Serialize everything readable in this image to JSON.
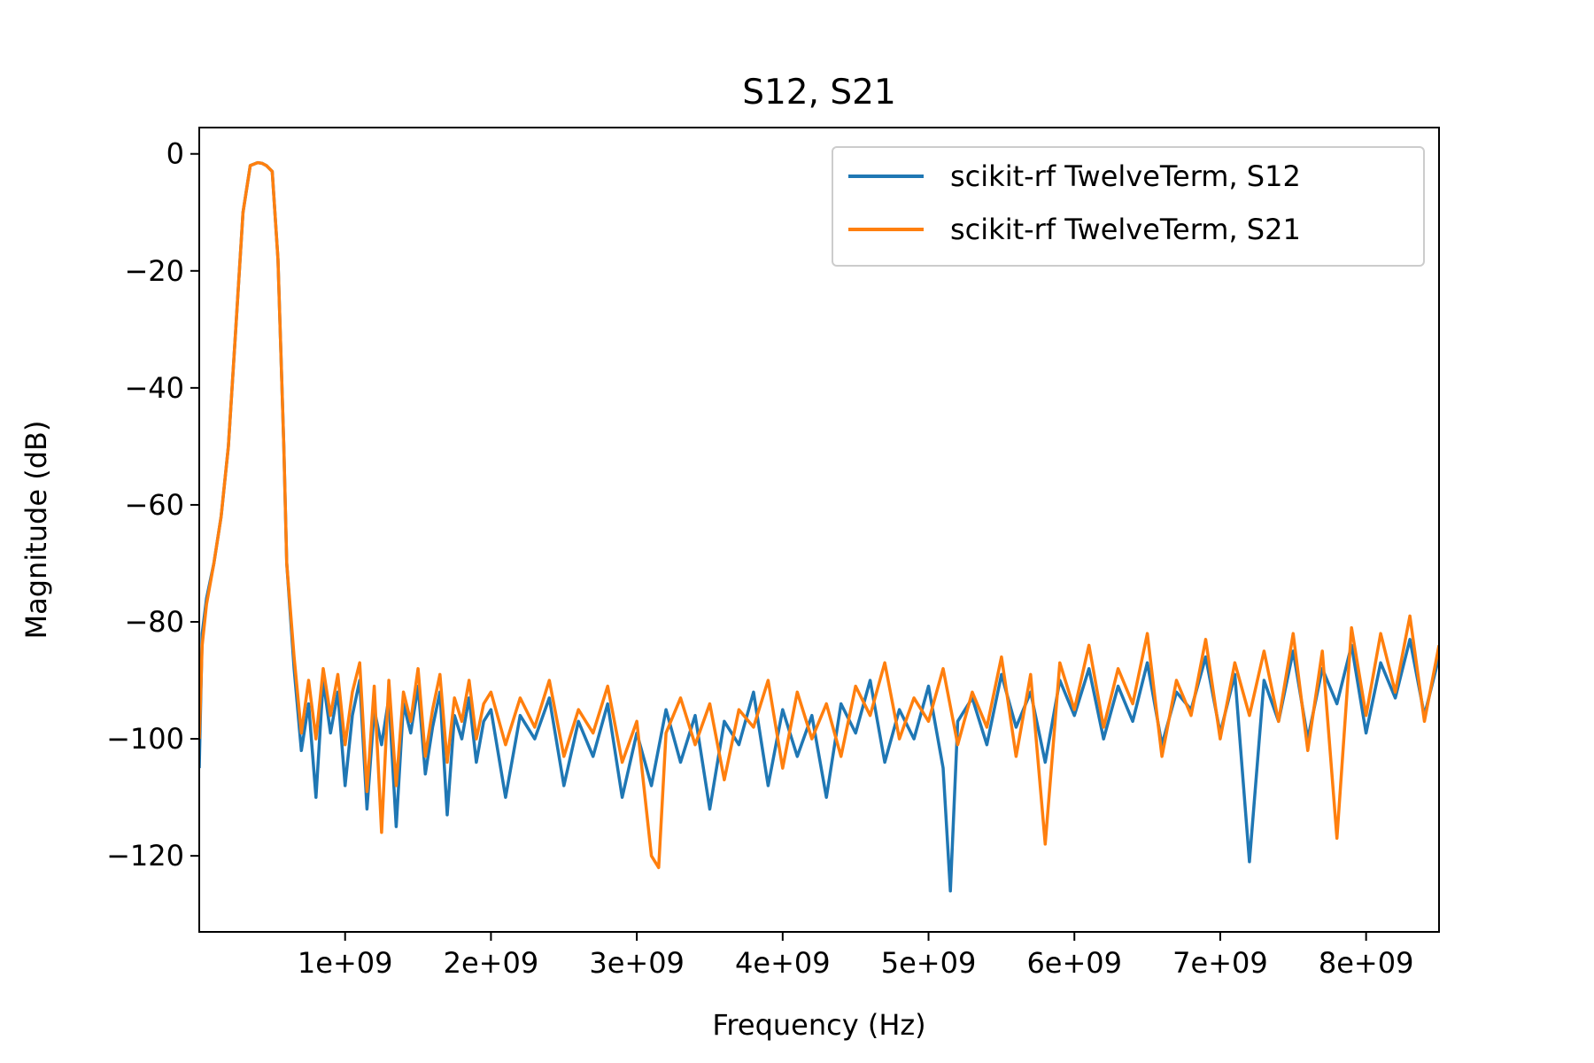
{
  "chart_data": {
    "type": "line",
    "title": "S12, S21",
    "xlabel": "Frequency (Hz)",
    "ylabel": "Magnitude (dB)",
    "xlim": [
      0,
      8500000000
    ],
    "ylim": [
      -133,
      4.5
    ],
    "xticks": [
      {
        "value": 1000000000,
        "label": "1e+09"
      },
      {
        "value": 2000000000,
        "label": "2e+09"
      },
      {
        "value": 3000000000,
        "label": "3e+09"
      },
      {
        "value": 4000000000,
        "label": "4e+09"
      },
      {
        "value": 5000000000,
        "label": "5e+09"
      },
      {
        "value": 6000000000,
        "label": "6e+09"
      },
      {
        "value": 7000000000,
        "label": "7e+09"
      },
      {
        "value": 8000000000,
        "label": "8e+09"
      }
    ],
    "yticks": [
      {
        "value": 0,
        "label": "0"
      },
      {
        "value": -20,
        "label": "−20"
      },
      {
        "value": -40,
        "label": "−40"
      },
      {
        "value": -60,
        "label": "−60"
      },
      {
        "value": -80,
        "label": "−80"
      },
      {
        "value": -100,
        "label": "−100"
      },
      {
        "value": -120,
        "label": "−120"
      }
    ],
    "grid": false,
    "legend_position": "upper right",
    "series": [
      {
        "name": "scikit-rf TwelveTerm, S12",
        "color": "#1f77b4",
        "x": [
          0,
          20000000,
          50000000,
          100000000,
          150000000,
          200000000,
          250000000,
          300000000,
          350000000,
          400000000,
          430000000,
          460000000,
          500000000,
          540000000,
          580000000,
          600000000,
          650000000,
          700000000,
          750000000,
          800000000,
          850000000,
          900000000,
          950000000,
          1000000000,
          1050000000,
          1100000000,
          1150000000,
          1200000000,
          1250000000,
          1300000000,
          1350000000,
          1400000000,
          1450000000,
          1500000000,
          1550000000,
          1600000000,
          1650000000,
          1700000000,
          1750000000,
          1800000000,
          1850000000,
          1900000000,
          1950000000,
          2000000000,
          2100000000,
          2200000000,
          2300000000,
          2400000000,
          2500000000,
          2600000000,
          2700000000,
          2800000000,
          2900000000,
          3000000000,
          3100000000,
          3200000000,
          3300000000,
          3400000000,
          3500000000,
          3600000000,
          3700000000,
          3800000000,
          3900000000,
          4000000000,
          4100000000,
          4200000000,
          4300000000,
          4400000000,
          4500000000,
          4600000000,
          4700000000,
          4800000000,
          4900000000,
          5000000000,
          5100000000,
          5150000000,
          5200000000,
          5300000000,
          5400000000,
          5500000000,
          5600000000,
          5700000000,
          5800000000,
          5900000000,
          6000000000,
          6100000000,
          6200000000,
          6300000000,
          6400000000,
          6500000000,
          6600000000,
          6700000000,
          6800000000,
          6900000000,
          7000000000,
          7100000000,
          7200000000,
          7300000000,
          7400000000,
          7500000000,
          7600000000,
          7700000000,
          7800000000,
          7900000000,
          8000000000,
          8100000000,
          8200000000,
          8300000000,
          8400000000,
          8500000000
        ],
        "y": [
          -105,
          -82,
          -76,
          -70,
          -62,
          -50,
          -30,
          -10,
          -2,
          -1.5,
          -1.6,
          -2,
          -3,
          -18,
          -50,
          -70,
          -88,
          -102,
          -94,
          -110,
          -90,
          -99,
          -92,
          -108,
          -96,
          -90,
          -112,
          -95,
          -101,
          -93,
          -115,
          -94,
          -99,
          -91,
          -106,
          -98,
          -92,
          -113,
          -96,
          -100,
          -93,
          -104,
          -97,
          -95,
          -110,
          -96,
          -100,
          -93,
          -108,
          -97,
          -103,
          -94,
          -110,
          -99,
          -108,
          -95,
          -104,
          -96,
          -112,
          -97,
          -101,
          -92,
          -108,
          -95,
          -103,
          -96,
          -110,
          -94,
          -99,
          -90,
          -104,
          -95,
          -100,
          -91,
          -105,
          -126,
          -97,
          -93,
          -101,
          -89,
          -98,
          -92,
          -104,
          -90,
          -96,
          -88,
          -100,
          -91,
          -97,
          -87,
          -101,
          -92,
          -95,
          -86,
          -99,
          -89,
          -121,
          -90,
          -97,
          -85,
          -100,
          -88,
          -94,
          -84,
          -99,
          -87,
          -93,
          -83,
          -96,
          -86
        ]
      },
      {
        "name": "scikit-rf TwelveTerm, S21",
        "color": "#ff7f0e",
        "x": [
          0,
          20000000,
          50000000,
          100000000,
          150000000,
          200000000,
          250000000,
          300000000,
          350000000,
          400000000,
          430000000,
          460000000,
          500000000,
          540000000,
          580000000,
          600000000,
          650000000,
          700000000,
          750000000,
          800000000,
          850000000,
          900000000,
          950000000,
          1000000000,
          1050000000,
          1100000000,
          1150000000,
          1200000000,
          1250000000,
          1300000000,
          1350000000,
          1400000000,
          1450000000,
          1500000000,
          1550000000,
          1600000000,
          1650000000,
          1700000000,
          1750000000,
          1800000000,
          1850000000,
          1900000000,
          1950000000,
          2000000000,
          2100000000,
          2200000000,
          2300000000,
          2400000000,
          2500000000,
          2600000000,
          2700000000,
          2800000000,
          2900000000,
          3000000000,
          3100000000,
          3150000000,
          3200000000,
          3300000000,
          3400000000,
          3500000000,
          3600000000,
          3700000000,
          3800000000,
          3900000000,
          4000000000,
          4100000000,
          4200000000,
          4300000000,
          4400000000,
          4500000000,
          4600000000,
          4700000000,
          4800000000,
          4900000000,
          5000000000,
          5100000000,
          5200000000,
          5300000000,
          5400000000,
          5500000000,
          5600000000,
          5700000000,
          5800000000,
          5900000000,
          6000000000,
          6100000000,
          6200000000,
          6300000000,
          6400000000,
          6500000000,
          6600000000,
          6700000000,
          6800000000,
          6900000000,
          7000000000,
          7100000000,
          7200000000,
          7300000000,
          7400000000,
          7500000000,
          7600000000,
          7700000000,
          7800000000,
          7900000000,
          8000000000,
          8100000000,
          8200000000,
          8300000000,
          8400000000,
          8500000000
        ],
        "y": [
          -100,
          -84,
          -77,
          -70,
          -62,
          -50,
          -30,
          -10,
          -2,
          -1.5,
          -1.6,
          -2,
          -3,
          -18,
          -50,
          -70,
          -86,
          -99,
          -90,
          -100,
          -88,
          -96,
          -89,
          -101,
          -92,
          -87,
          -109,
          -91,
          -116,
          -90,
          -108,
          -92,
          -97,
          -88,
          -103,
          -95,
          -89,
          -104,
          -93,
          -97,
          -90,
          -100,
          -94,
          -92,
          -101,
          -93,
          -98,
          -90,
          -103,
          -95,
          -99,
          -91,
          -104,
          -97,
          -120,
          -122,
          -99,
          -93,
          -101,
          -94,
          -107,
          -95,
          -98,
          -90,
          -105,
          -92,
          -100,
          -94,
          -103,
          -91,
          -96,
          -87,
          -100,
          -93,
          -97,
          -88,
          -101,
          -92,
          -98,
          -86,
          -103,
          -89,
          -118,
          -87,
          -95,
          -84,
          -98,
          -88,
          -94,
          -82,
          -103,
          -90,
          -96,
          -83,
          -100,
          -87,
          -96,
          -85,
          -97,
          -82,
          -102,
          -85,
          -117,
          -81,
          -96,
          -82,
          -92,
          -79,
          -97,
          -84
        ]
      }
    ]
  }
}
